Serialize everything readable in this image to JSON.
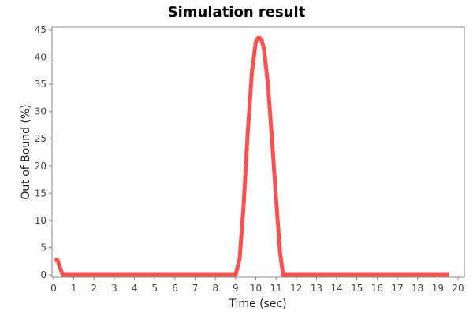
{
  "chart_data": {
    "type": "line",
    "title": "Simulation result",
    "xlabel": "Time (sec)",
    "ylabel": "Out of Bound (%)",
    "xlim": [
      0,
      20
    ],
    "ylim": [
      0,
      45
    ],
    "xticks": [
      0,
      1,
      2,
      3,
      4,
      5,
      6,
      7,
      8,
      9,
      10,
      11,
      12,
      13,
      14,
      15,
      16,
      17,
      18,
      19,
      20
    ],
    "yticks": [
      0,
      5,
      10,
      15,
      20,
      25,
      30,
      35,
      40,
      45
    ],
    "grid": false,
    "legend": "none",
    "series": [
      {
        "color": "#ff5050",
        "x": [
          0.05,
          0.2,
          0.3,
          0.45,
          0.6,
          9.0,
          9.2,
          9.4,
          9.6,
          9.8,
          10.0,
          10.1,
          10.2,
          10.3,
          10.4,
          10.6,
          10.8,
          11.0,
          11.2,
          11.35,
          11.5,
          19.55
        ],
        "y": [
          2.7,
          2.7,
          1.5,
          0,
          0,
          0,
          3,
          13,
          26,
          37,
          42.8,
          43.5,
          43.5,
          43.0,
          41.5,
          35,
          25,
          14,
          4,
          0,
          0,
          0
        ]
      }
    ]
  }
}
